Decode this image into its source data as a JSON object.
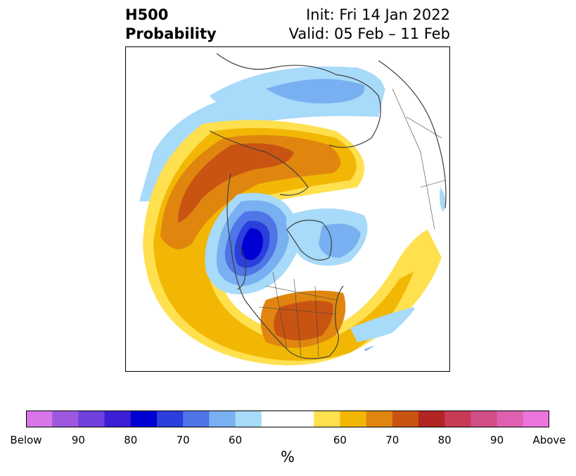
{
  "title": {
    "left_line1": "H500",
    "left_line2": "Probability",
    "right_line1": "Init: Fri 14 Jan 2022",
    "right_line2": "Valid: 05 Feb – 11 Feb"
  },
  "colorbar": {
    "colors": [
      "#d875e8",
      "#9e58e0",
      "#7040dc",
      "#3b1fd6",
      "#0000d2",
      "#2a3fdc",
      "#4f75e6",
      "#78b0f2",
      "#a8daf9",
      "#ffffff",
      "#ffffff",
      "#ffe04f",
      "#f2b705",
      "#e0860f",
      "#c95412",
      "#b22522",
      "#c83a55",
      "#d24e86",
      "#de60b0",
      "#ea74dc"
    ],
    "tick_labels": [
      "Below",
      "90",
      "80",
      "70",
      "60",
      "60",
      "70",
      "80",
      "90",
      "Above"
    ],
    "unit": "%"
  },
  "map": {
    "projection": "north polar stereographic",
    "anomaly_colors": {
      "below_60": "#a8daf9",
      "below_70": "#78b0f2",
      "below_80": "#4f75e6",
      "below_90": "#2a3fdc",
      "below_100": "#0000d2",
      "above_60": "#ffe04f",
      "above_65": "#f2b705",
      "above_70": "#e0860f",
      "above_75": "#c95412"
    }
  }
}
